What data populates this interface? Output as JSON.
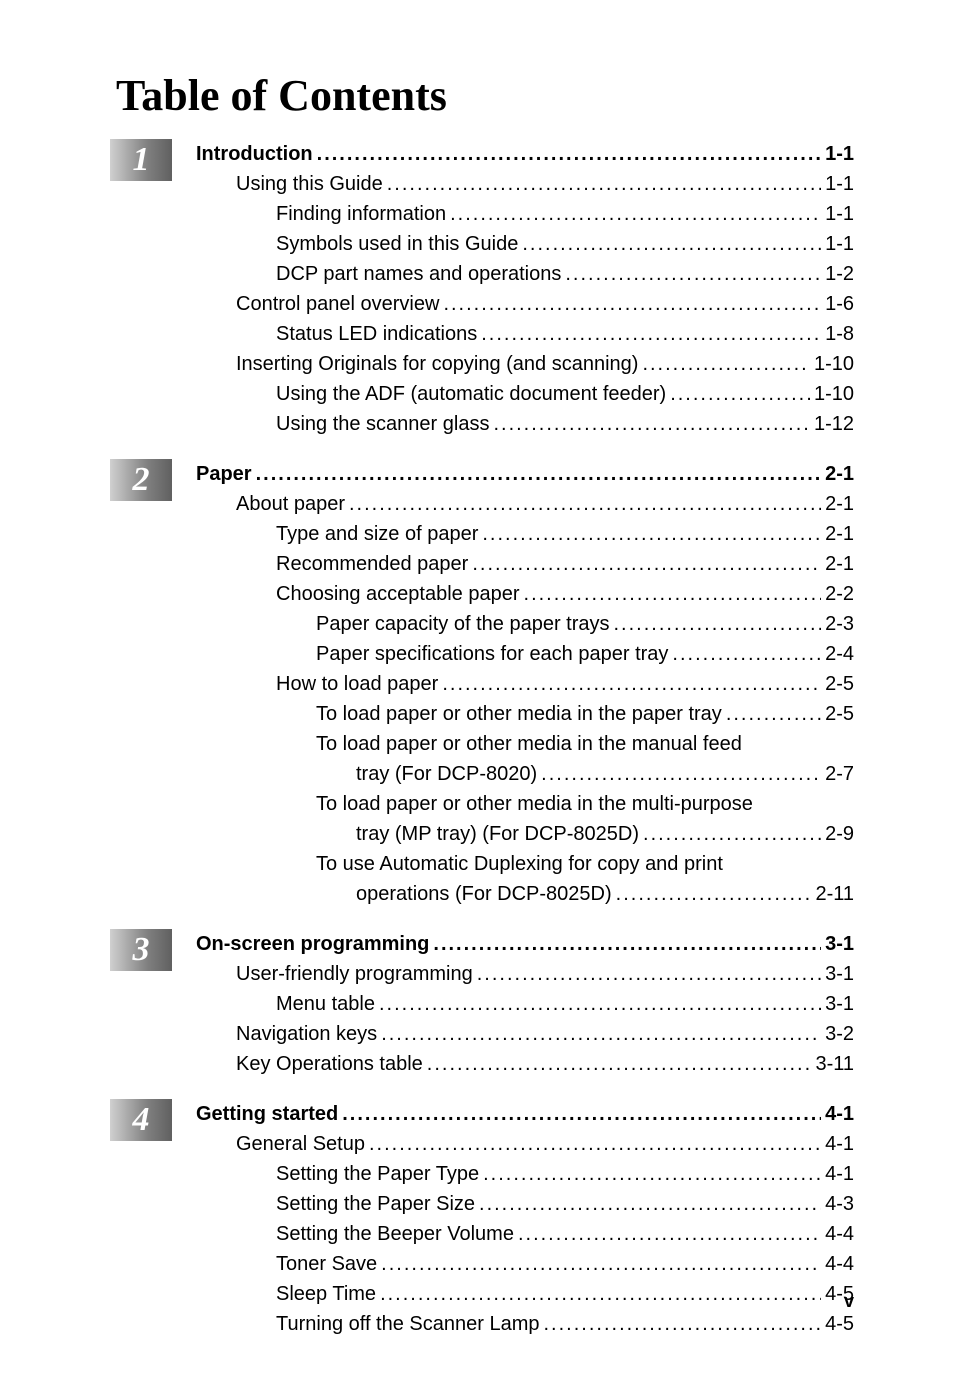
{
  "title": "Table of Contents",
  "footer": "v",
  "chapters": [
    {
      "number": "1",
      "lines": [
        {
          "level": 0,
          "text": "Introduction",
          "page": "1-1"
        },
        {
          "level": 1,
          "text": "Using this Guide",
          "page": "1-1"
        },
        {
          "level": 2,
          "text": "Finding information",
          "page": "1-1"
        },
        {
          "level": 2,
          "text": "Symbols used in this Guide",
          "page": "1-1"
        },
        {
          "level": 2,
          "text": "DCP part names and operations",
          "page": "1-2"
        },
        {
          "level": 1,
          "text": "Control panel overview",
          "page": "1-6"
        },
        {
          "level": 2,
          "text": "Status LED indications",
          "page": "1-8"
        },
        {
          "level": 1,
          "text": "Inserting Originals for copying (and scanning)",
          "page": "1-10"
        },
        {
          "level": 2,
          "text": "Using the ADF (automatic document feeder)",
          "page": "1-10"
        },
        {
          "level": 2,
          "text": "Using the scanner glass",
          "page": "1-12"
        }
      ]
    },
    {
      "number": "2",
      "lines": [
        {
          "level": 0,
          "text": "Paper",
          "page": "2-1"
        },
        {
          "level": 1,
          "text": "About paper",
          "page": "2-1"
        },
        {
          "level": 2,
          "text": "Type and size of paper",
          "page": "2-1"
        },
        {
          "level": 2,
          "text": "Recommended paper",
          "page": "2-1"
        },
        {
          "level": 2,
          "text": "Choosing acceptable paper",
          "page": "2-2"
        },
        {
          "level": 3,
          "text": "Paper capacity of the paper trays",
          "page": "2-3"
        },
        {
          "level": 3,
          "text": "Paper specifications for each paper tray",
          "page": "2-4"
        },
        {
          "level": 2,
          "text": "How to load paper",
          "page": "2-5"
        },
        {
          "level": 3,
          "text": "To load paper or other media in the paper tray",
          "page": "2-5"
        },
        {
          "level": 3,
          "text": "To load paper or other media in the manual feed",
          "page": null
        },
        {
          "level": 4,
          "text": "tray (For DCP-8020)",
          "page": "2-7"
        },
        {
          "level": 3,
          "text": "To load paper or other media in the multi-purpose",
          "page": null
        },
        {
          "level": 4,
          "text": "tray (MP tray) (For DCP-8025D)",
          "page": "2-9"
        },
        {
          "level": 3,
          "text": "To use Automatic Duplexing for copy and print",
          "page": null
        },
        {
          "level": 4,
          "text": "operations (For DCP-8025D)",
          "page": "2-11"
        }
      ]
    },
    {
      "number": "3",
      "lines": [
        {
          "level": 0,
          "text": "On-screen programming",
          "page": "3-1"
        },
        {
          "level": 1,
          "text": "User-friendly programming",
          "page": "3-1"
        },
        {
          "level": 2,
          "text": "Menu table",
          "page": "3-1"
        },
        {
          "level": 1,
          "text": "Navigation keys",
          "page": "3-2"
        },
        {
          "level": 1,
          "text": "Key Operations table",
          "page": "3-11"
        }
      ]
    },
    {
      "number": "4",
      "lines": [
        {
          "level": 0,
          "text": "Getting started",
          "page": "4-1"
        },
        {
          "level": 1,
          "text": "General Setup",
          "page": "4-1"
        },
        {
          "level": 2,
          "text": "Setting the Paper Type",
          "page": "4-1"
        },
        {
          "level": 2,
          "text": "Setting the Paper Size",
          "page": "4-3"
        },
        {
          "level": 2,
          "text": "Setting the Beeper Volume",
          "page": "4-4"
        },
        {
          "level": 2,
          "text": "Toner Save",
          "page": "4-4"
        },
        {
          "level": 2,
          "text": "Sleep Time",
          "page": "4-5"
        },
        {
          "level": 2,
          "text": "Turning off the Scanner Lamp",
          "page": "4-5"
        }
      ]
    }
  ]
}
